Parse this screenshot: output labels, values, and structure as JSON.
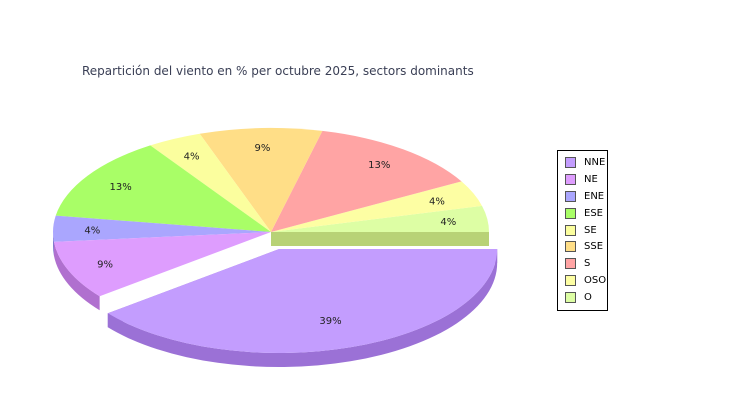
{
  "chart_data": {
    "type": "pie",
    "title": "Repartición del viento en % per octubre 2025, sectors dominants",
    "categories": [
      "NNE",
      "NE",
      "ENE",
      "ESE",
      "SE",
      "SSE",
      "S",
      "OSO",
      "O"
    ],
    "values": [
      39,
      9,
      4,
      13,
      4,
      9,
      13,
      4,
      4
    ],
    "labels": [
      "39%",
      "9%",
      "4%",
      "13%",
      "4%",
      "9%",
      "13%",
      "4%",
      "4%"
    ],
    "colors": [
      "#c39dfe",
      "#de9dfe",
      "#aaa6fe",
      "#a9fe67",
      "#fbfe9e",
      "#ffde87",
      "#ffa4a4",
      "#fdfea3",
      "#ddfea4"
    ],
    "side_colors": [
      "#9b71d6",
      "#b070cf",
      "#7f79d0",
      "#82cc48",
      "#c9cc76",
      "#cfb062",
      "#cf7b7b",
      "#cbcc79",
      "#b3cc7d"
    ],
    "exploded": [
      "NNE"
    ],
    "legend_position": "right"
  }
}
